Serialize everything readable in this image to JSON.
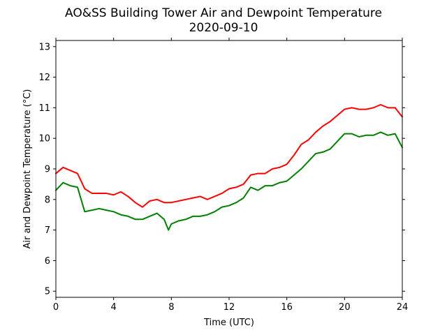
{
  "chart_data": {
    "type": "line",
    "title": "AO&SS Building Tower Air and Dewpoint Temperature",
    "subtitle": "2020-09-10",
    "xlabel": "Time (UTC)",
    "ylabel": "Air and Dewpoint Temperature (°C)",
    "xlim": [
      0,
      24
    ],
    "ylim": [
      4.8,
      13.2
    ],
    "xticks": [
      0,
      4,
      8,
      12,
      16,
      20,
      24
    ],
    "yticks": [
      5,
      6,
      7,
      8,
      9,
      10,
      11,
      12,
      13
    ],
    "grid": false,
    "legend": "none",
    "series": [
      {
        "color": "#ff0000",
        "x": [
          0,
          0.5,
          1,
          1.5,
          2,
          2.5,
          3,
          3.5,
          4,
          4.5,
          5,
          5.5,
          6,
          6.5,
          7,
          7.5,
          8,
          8.5,
          9,
          9.5,
          10,
          10.5,
          11,
          11.5,
          12,
          12.5,
          13,
          13.5,
          14,
          14.5,
          15,
          15.5,
          16,
          16.5,
          17,
          17.5,
          18,
          18.5,
          19,
          19.5,
          20,
          20.5,
          21,
          21.5,
          22,
          22.5,
          23,
          23.5,
          24
        ],
        "y": [
          8.85,
          9.05,
          8.95,
          8.85,
          8.35,
          8.2,
          8.2,
          8.2,
          8.15,
          8.25,
          8.1,
          7.9,
          7.75,
          7.95,
          8.0,
          7.9,
          7.9,
          7.95,
          8.0,
          8.05,
          8.1,
          8.0,
          8.1,
          8.2,
          8.35,
          8.4,
          8.5,
          8.8,
          8.85,
          8.85,
          9.0,
          9.05,
          9.15,
          9.45,
          9.8,
          9.95,
          10.2,
          10.4,
          10.55,
          10.75,
          10.95,
          11.0,
          10.95,
          10.95,
          11.0,
          11.1,
          11.0,
          11.0,
          10.7
        ]
      },
      {
        "color": "#008000",
        "x": [
          0,
          0.5,
          1,
          1.5,
          2,
          2.5,
          3,
          3.5,
          4,
          4.5,
          5,
          5.5,
          6,
          6.5,
          7,
          7.5,
          7.8,
          8,
          8.5,
          9,
          9.5,
          10,
          10.5,
          11,
          11.5,
          12,
          12.5,
          13,
          13.5,
          14,
          14.5,
          15,
          15.5,
          16,
          16.5,
          17,
          17.5,
          18,
          18.5,
          19,
          19.5,
          20,
          20.5,
          21,
          21.5,
          22,
          22.5,
          23,
          23.5,
          24
        ],
        "y": [
          8.3,
          8.55,
          8.45,
          8.4,
          7.6,
          7.65,
          7.7,
          7.65,
          7.6,
          7.5,
          7.45,
          7.35,
          7.35,
          7.45,
          7.55,
          7.35,
          7.0,
          7.2,
          7.3,
          7.35,
          7.45,
          7.45,
          7.5,
          7.6,
          7.75,
          7.8,
          7.9,
          8.05,
          8.4,
          8.3,
          8.45,
          8.45,
          8.55,
          8.6,
          8.8,
          9.0,
          9.25,
          9.5,
          9.55,
          9.65,
          9.9,
          10.15,
          10.15,
          10.05,
          10.1,
          10.1,
          10.2,
          10.1,
          10.15,
          9.7
        ]
      }
    ]
  }
}
